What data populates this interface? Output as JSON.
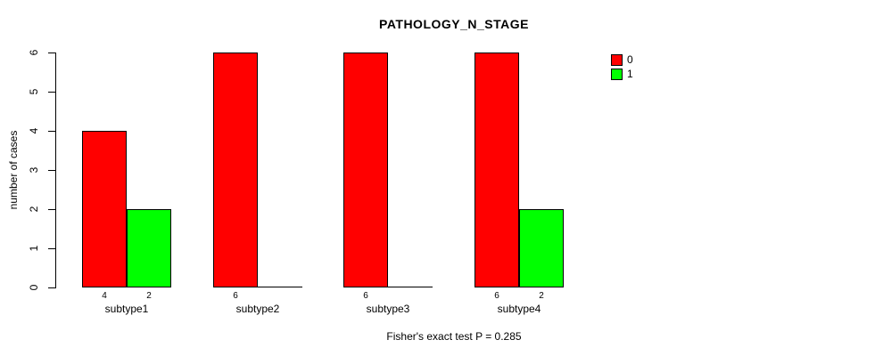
{
  "title": "PATHOLOGY_N_STAGE",
  "legend": {
    "items": [
      {
        "label": "0",
        "color": "#ff0000"
      },
      {
        "label": "1",
        "color": "#00ff00"
      }
    ]
  },
  "chart_data": {
    "type": "bar",
    "title": "PATHOLOGY_N_STAGE",
    "xlabel": "",
    "ylabel": "number of cases",
    "categories": [
      "subtype1",
      "subtype2",
      "subtype3",
      "subtype4"
    ],
    "series": [
      {
        "name": "0",
        "color": "#ff0000",
        "values": [
          4,
          6,
          6,
          6
        ]
      },
      {
        "name": "1",
        "color": "#00ff00",
        "values": [
          2,
          0,
          0,
          2
        ]
      }
    ],
    "bar_border_color": "#000000",
    "ylim": [
      0,
      6
    ],
    "yticks": [
      0,
      1,
      2,
      3,
      4,
      5,
      6
    ],
    "grid": false,
    "value_labels_shown_for_nonzero_bars": true,
    "legend_position": "top-right",
    "legend_labels": [
      "0",
      "1"
    ],
    "annotation": "Fisher's exact test P = 0.285"
  }
}
